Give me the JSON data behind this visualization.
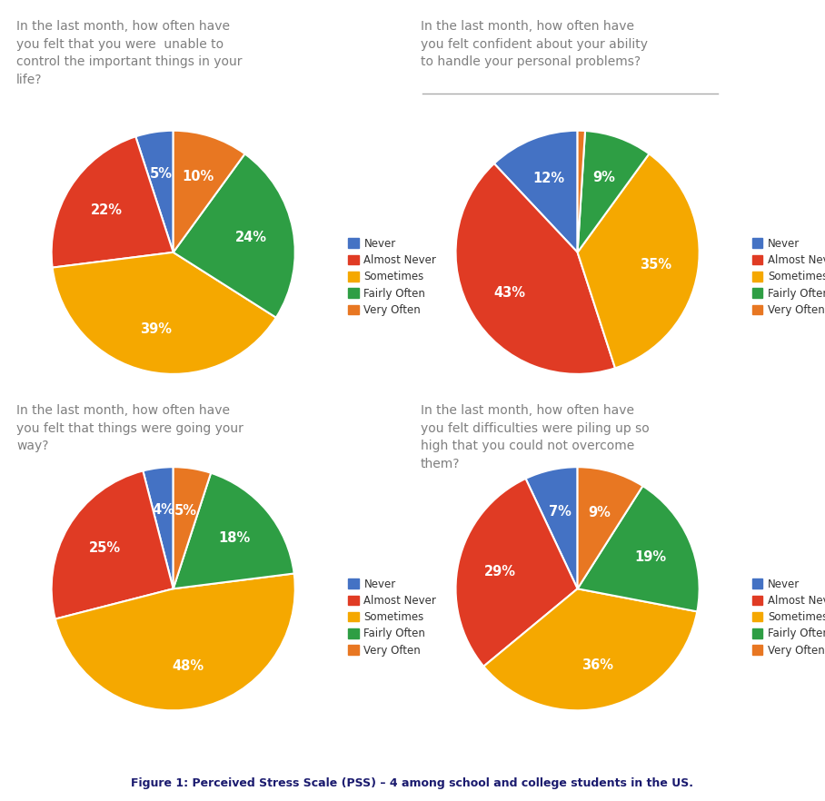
{
  "charts": [
    {
      "title": "In the last month, how often have\nyou felt that you were  unable to\ncontrol the important things in your\nlife?",
      "values": [
        5,
        22,
        39,
        24,
        10
      ],
      "labels": [
        "5%",
        "22%",
        "39%",
        "24%",
        "10%"
      ],
      "colors": [
        "#4472C4",
        "#E03B24",
        "#F5A800",
        "#2E9E44",
        "#E87722"
      ],
      "startangle": 90
    },
    {
      "title": "In the last month, how often have\nyou felt confident about your ability\nto handle your personal problems?",
      "values": [
        12,
        43,
        35,
        9,
        1
      ],
      "labels": [
        "12%",
        "43%",
        "35%",
        "9%",
        "1%"
      ],
      "colors": [
        "#4472C4",
        "#E03B24",
        "#F5A800",
        "#2E9E44",
        "#E87722"
      ],
      "startangle": 90
    },
    {
      "title": "In the last month, how often have\nyou felt that things were going your\nway?",
      "values": [
        4,
        25,
        48,
        18,
        5
      ],
      "labels": [
        "4%",
        "25%",
        "48%",
        "18%",
        "5%"
      ],
      "colors": [
        "#4472C4",
        "#E03B24",
        "#F5A800",
        "#2E9E44",
        "#E87722"
      ],
      "startangle": 90
    },
    {
      "title": "In the last month, how often have\nyou felt difficulties were piling up so\nhigh that you could not overcome\nthem?",
      "values": [
        7,
        29,
        36,
        19,
        9
      ],
      "labels": [
        "7%",
        "29%",
        "36%",
        "19%",
        "9%"
      ],
      "colors": [
        "#4472C4",
        "#E03B24",
        "#F5A800",
        "#2E9E44",
        "#E87722"
      ],
      "startangle": 90
    }
  ],
  "legend_labels": [
    "Never",
    "Almost Never",
    "Sometimes",
    "Fairly Often",
    "Very Often"
  ],
  "legend_colors": [
    "#4472C4",
    "#E03B24",
    "#F5A800",
    "#2E9E44",
    "#E87722"
  ],
  "figure_caption": "Figure 1: Perceived Stress Scale (PSS) – 4 among school and college students in the US.",
  "background_color": "#FFFFFF",
  "title_color": "#7f7f7f",
  "text_color": "#FFFFFF",
  "title_fontsize": 10.0,
  "label_fontsize": 10.5,
  "caption_fontsize": 9,
  "separator_line": true
}
